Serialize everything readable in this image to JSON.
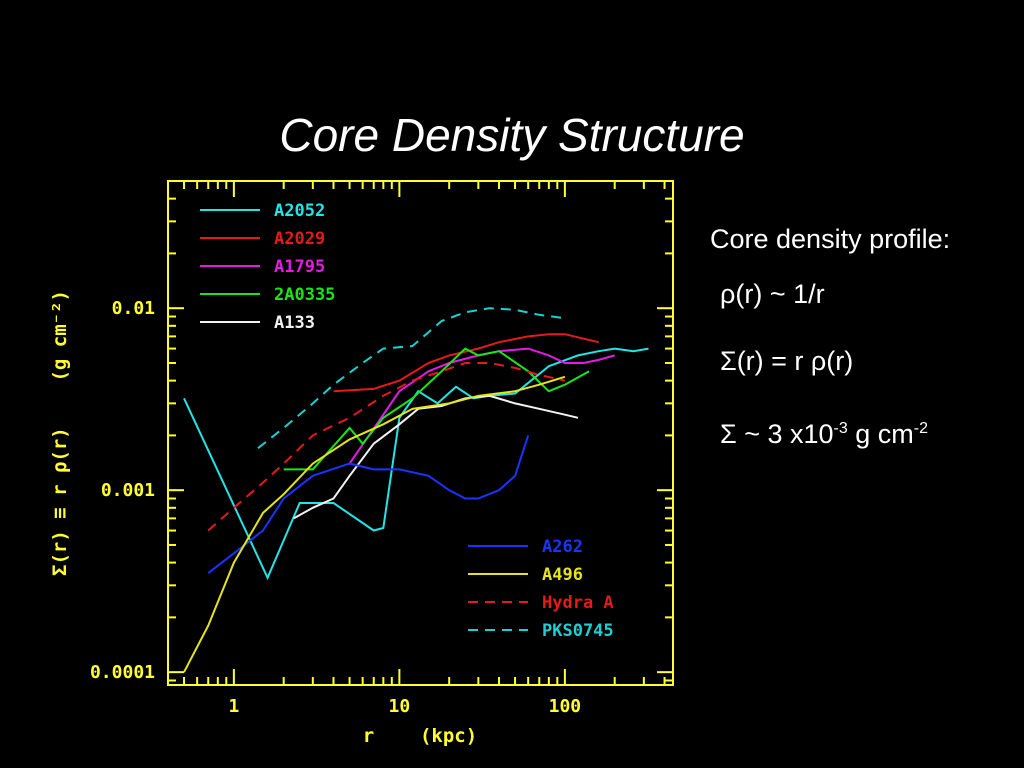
{
  "slide": {
    "title": "Core Density Structure",
    "side_title": "Core density profile:",
    "formula1": "ρ(r) ~ 1/r",
    "formula2": "Σ(r) = r ρ(r)",
    "formula3_prefix": "Σ ~ 3 x10",
    "formula3_exp1": "-3",
    "formula3_unit": " g cm",
    "formula3_exp2": "-2"
  },
  "colors": {
    "background": "#000000",
    "axes": "#ffff33",
    "A2052": "#22e5e5",
    "A2029": "#e51a1a",
    "A1795": "#e51ae5",
    "2A0335": "#1ae51a",
    "A133": "#f2f2f2",
    "A262": "#1a33ff",
    "A496": "#e5e51a",
    "Hydra A": "#e51a1a",
    "PKS0745": "#1ad2d2"
  },
  "chart_data": {
    "type": "line",
    "xscale": "log",
    "yscale": "log",
    "xlim": [
      0.4,
      450
    ],
    "ylim": [
      8.5e-05,
      0.05
    ],
    "xlabel": "r    (kpc)",
    "ylabel": "Σ(r) ≡ r ρ(r)    (g cm⁻²)",
    "xticks": [
      1,
      10,
      100
    ],
    "xtick_labels": [
      "1",
      "10",
      "100"
    ],
    "yticks": [
      0.0001,
      0.001,
      0.01
    ],
    "ytick_labels": [
      "0.0001",
      "0.001",
      "0.01"
    ],
    "legend_top": [
      "A2052",
      "A2029",
      "A1795",
      "2A0335",
      "A133"
    ],
    "legend_bottom": [
      "A262",
      "A496",
      "Hydra A",
      "PKS0745"
    ],
    "series": [
      {
        "name": "A2052",
        "style": "solid",
        "x": [
          0.5,
          1.6,
          2.5,
          4,
          7,
          8,
          10,
          13,
          17,
          22,
          28,
          35,
          50,
          80,
          120,
          160,
          200,
          260,
          320
        ],
        "y": [
          0.0032,
          0.00033,
          0.00085,
          0.00085,
          0.0006,
          0.00062,
          0.0025,
          0.0035,
          0.003,
          0.0037,
          0.0032,
          0.0033,
          0.0034,
          0.0048,
          0.0055,
          0.0058,
          0.006,
          0.0058,
          0.006
        ]
      },
      {
        "name": "A2029",
        "style": "solid",
        "x": [
          4,
          7,
          10,
          15,
          20,
          30,
          40,
          60,
          80,
          100,
          130,
          160
        ],
        "y": [
          0.0035,
          0.0036,
          0.004,
          0.005,
          0.0055,
          0.006,
          0.0065,
          0.007,
          0.0072,
          0.0072,
          0.0068,
          0.0065
        ]
      },
      {
        "name": "A1795",
        "style": "solid",
        "x": [
          5,
          10,
          15,
          20,
          30,
          40,
          60,
          80,
          100,
          130,
          160,
          200
        ],
        "y": [
          0.0014,
          0.0035,
          0.0045,
          0.005,
          0.0055,
          0.0058,
          0.006,
          0.0055,
          0.005,
          0.005,
          0.0052,
          0.0055
        ]
      },
      {
        "name": "2A0335",
        "style": "solid",
        "x": [
          2,
          3,
          5,
          6,
          8,
          12,
          18,
          25,
          30,
          40,
          60,
          80,
          100,
          140
        ],
        "y": [
          0.0013,
          0.0013,
          0.0022,
          0.0018,
          0.0025,
          0.0032,
          0.0045,
          0.006,
          0.0055,
          0.0058,
          0.0045,
          0.0035,
          0.0038,
          0.0045
        ]
      },
      {
        "name": "A133",
        "style": "solid",
        "x": [
          2.3,
          3,
          4,
          5,
          7,
          10,
          13,
          18,
          25,
          35,
          50,
          70,
          100,
          120
        ],
        "y": [
          0.0007,
          0.0008,
          0.0009,
          0.0012,
          0.0018,
          0.0023,
          0.0028,
          0.0029,
          0.0032,
          0.0033,
          0.003,
          0.0028,
          0.0026,
          0.0025
        ]
      },
      {
        "name": "A262",
        "style": "solid",
        "x": [
          0.7,
          1,
          1.5,
          2,
          3,
          5,
          7,
          10,
          15,
          20,
          25,
          30,
          40,
          50,
          60
        ],
        "y": [
          0.00035,
          0.00045,
          0.0006,
          0.0009,
          0.0012,
          0.0014,
          0.0013,
          0.0013,
          0.0012,
          0.001,
          0.0009,
          0.0009,
          0.001,
          0.0012,
          0.002
        ]
      },
      {
        "name": "A496",
        "style": "solid",
        "x": [
          0.5,
          0.7,
          1,
          1.5,
          2,
          3,
          5,
          8,
          12,
          20,
          30,
          50,
          70,
          100
        ],
        "y": [
          0.0001,
          0.00018,
          0.0004,
          0.00075,
          0.00095,
          0.0014,
          0.0019,
          0.0023,
          0.0028,
          0.003,
          0.0033,
          0.0035,
          0.0038,
          0.0042
        ]
      },
      {
        "name": "Hydra A",
        "style": "dashed",
        "x": [
          0.7,
          1,
          1.5,
          2,
          3,
          5,
          8,
          12,
          18,
          25,
          35,
          50,
          70,
          100
        ],
        "y": [
          0.0006,
          0.0008,
          0.0011,
          0.0014,
          0.002,
          0.0025,
          0.0033,
          0.004,
          0.0045,
          0.005,
          0.005,
          0.0047,
          0.0043,
          0.004
        ]
      },
      {
        "name": "PKS0745",
        "style": "dashed",
        "x": [
          1.4,
          2,
          3,
          4,
          6,
          8,
          12,
          18,
          25,
          35,
          50,
          70,
          100
        ],
        "y": [
          0.0017,
          0.0022,
          0.003,
          0.0038,
          0.005,
          0.006,
          0.0062,
          0.0085,
          0.0095,
          0.01,
          0.0098,
          0.0092,
          0.0088
        ]
      }
    ]
  }
}
